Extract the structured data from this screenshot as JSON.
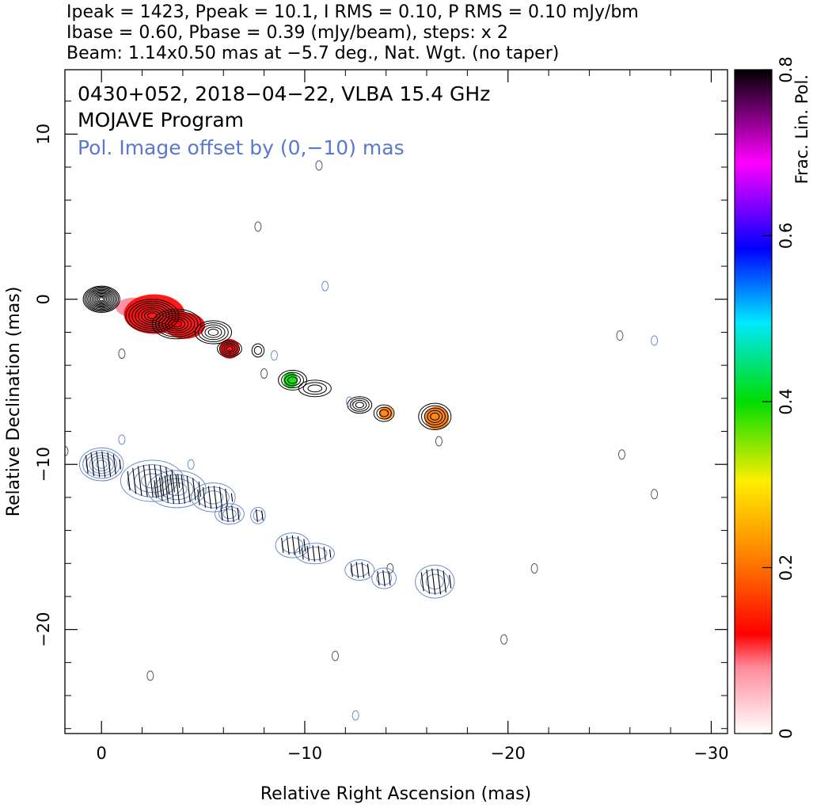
{
  "header": {
    "line1": "Ipeak = 1423, Ppeak = 10.1, I RMS = 0.10, P RMS = 0.10 mJy/bm",
    "line2": "Ibase = 0.60, Pbase = 0.39 (mJy/beam), steps: x 2",
    "line3": "Beam: 1.14x0.50 mas at −5.7 deg., Nat. Wgt. (no taper)"
  },
  "annotations": {
    "source_line": "0430+052, 2018−04−22, VLBA 15.4 GHz",
    "program_line": "MOJAVE Program",
    "offset_line": "Pol. Image offset by (0,−10) mas"
  },
  "colors": {
    "offset_text": "#5a78d0",
    "stokes_i_contour": "#000000",
    "pol_contour": "#6e8ccf",
    "evpa_stick": "#000000",
    "background": "#ffffff"
  },
  "chart_data": {
    "type": "contour",
    "xlabel": "Relative Right Ascension (mas)",
    "ylabel": "Relative Declination (mas)",
    "xlim": [
      1.8,
      -30.8
    ],
    "ylim": [
      -26.3,
      13.9
    ],
    "x_ticks": [
      0,
      -10,
      -20,
      -30
    ],
    "x_tick_labels": [
      "0",
      "−10",
      "−20",
      "−30"
    ],
    "y_ticks": [
      10,
      0,
      -10,
      -20
    ],
    "y_tick_labels": [
      "10",
      "0",
      "−10",
      "−20"
    ],
    "grid": false,
    "colorbar": {
      "label": "Frac. Lin. Pol.",
      "range": [
        0,
        0.8
      ],
      "ticks": [
        0,
        0.2,
        0.4,
        0.6,
        0.8
      ],
      "tick_labels": [
        "0",
        "0.2",
        "0.4",
        "0.6",
        "0.8"
      ]
    },
    "total_intensity_components": [
      {
        "x": 0.0,
        "y": 0.0,
        "rx": 0.9,
        "ry": 0.8,
        "levels": 12
      },
      {
        "x": -2.5,
        "y": -1.0,
        "rx": 1.3,
        "ry": 1.0,
        "levels": 8
      },
      {
        "x": -3.7,
        "y": -1.5,
        "rx": 1.2,
        "ry": 0.9,
        "levels": 7
      },
      {
        "x": -5.5,
        "y": -2.0,
        "rx": 0.9,
        "ry": 0.7,
        "levels": 5
      },
      {
        "x": -6.3,
        "y": -3.0,
        "rx": 0.6,
        "ry": 0.5,
        "levels": 5
      },
      {
        "x": -7.7,
        "y": -3.1,
        "rx": 0.3,
        "ry": 0.4,
        "levels": 2
      },
      {
        "x": -9.4,
        "y": -4.9,
        "rx": 0.7,
        "ry": 0.6,
        "levels": 4
      },
      {
        "x": -10.5,
        "y": -5.4,
        "rx": 0.8,
        "ry": 0.5,
        "levels": 3
      },
      {
        "x": -12.7,
        "y": -6.4,
        "rx": 0.6,
        "ry": 0.5,
        "levels": 4
      },
      {
        "x": -13.9,
        "y": -6.9,
        "rx": 0.5,
        "ry": 0.5,
        "levels": 3
      },
      {
        "x": -16.4,
        "y": -7.1,
        "rx": 0.8,
        "ry": 0.8,
        "levels": 5
      }
    ],
    "fractional_polarization_regions": [
      {
        "x": -1.6,
        "y": -0.5,
        "rx": 0.9,
        "ry": 0.6,
        "value": 0.05
      },
      {
        "x": -2.6,
        "y": -0.9,
        "rx": 1.5,
        "ry": 1.2,
        "value": 0.1
      },
      {
        "x": -4.1,
        "y": -1.6,
        "rx": 1.0,
        "ry": 0.8,
        "value": 0.1
      },
      {
        "x": -6.3,
        "y": -3.0,
        "rx": 0.5,
        "ry": 0.6,
        "value": 0.12
      },
      {
        "x": -9.3,
        "y": -4.9,
        "rx": 0.35,
        "ry": 0.5,
        "value": 0.32
      },
      {
        "x": -14.0,
        "y": -6.9,
        "rx": 0.35,
        "ry": 0.4,
        "value": 0.18
      },
      {
        "x": -16.5,
        "y": -7.2,
        "rx": 0.6,
        "ry": 0.7,
        "value": 0.15
      }
    ]
  }
}
